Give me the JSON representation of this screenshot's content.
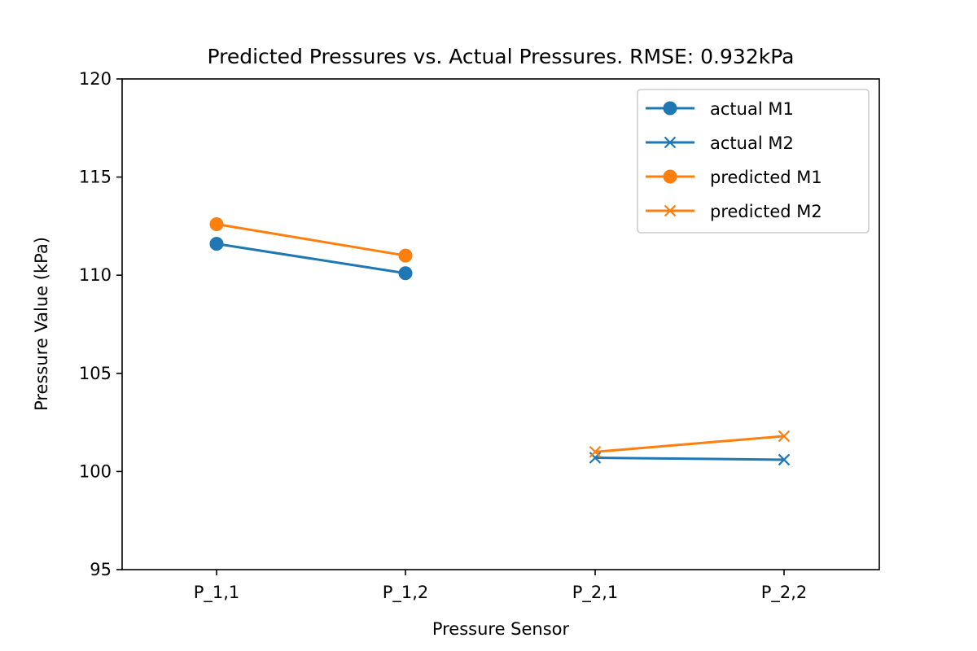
{
  "chart_data": {
    "type": "line",
    "title": "Predicted Pressures vs. Actual Pressures. RMSE: 0.932kPa",
    "xlabel": "Pressure Sensor",
    "ylabel": "Pressure Value (kPa)",
    "categories": [
      "P_1,1",
      "P_1,2",
      "P_2,1",
      "P_2,2"
    ],
    "ylim": [
      95,
      120
    ],
    "yticks": [
      95,
      100,
      105,
      110,
      115,
      120
    ],
    "grid": false,
    "legend_position": "top-right",
    "series": [
      {
        "name": "actual M1",
        "marker": "circle",
        "color": "#1f77b4",
        "points": [
          {
            "x": "P_1,1",
            "y": 111.6
          },
          {
            "x": "P_1,2",
            "y": 110.1
          }
        ]
      },
      {
        "name": "actual M2",
        "marker": "x",
        "color": "#1f77b4",
        "points": [
          {
            "x": "P_2,1",
            "y": 100.7
          },
          {
            "x": "P_2,2",
            "y": 100.6
          }
        ]
      },
      {
        "name": "predicted M1",
        "marker": "circle",
        "color": "#ff7f0e",
        "points": [
          {
            "x": "P_1,1",
            "y": 112.6
          },
          {
            "x": "P_1,2",
            "y": 111.0
          }
        ]
      },
      {
        "name": "predicted M2",
        "marker": "x",
        "color": "#ff7f0e",
        "points": [
          {
            "x": "P_2,1",
            "y": 101.0
          },
          {
            "x": "P_2,2",
            "y": 101.8
          }
        ]
      }
    ]
  }
}
